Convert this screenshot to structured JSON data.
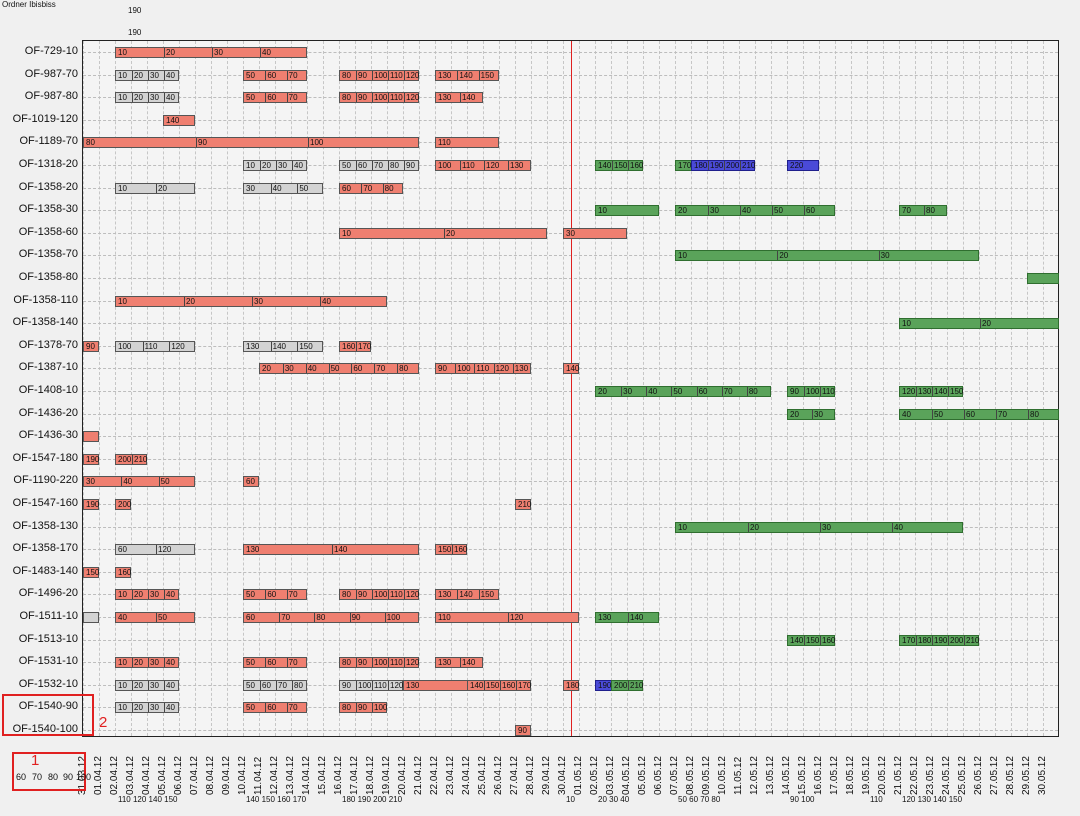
{
  "header": {
    "top_left": "Ordner Ibisbiss",
    "top_marks": [
      "190",
      "190"
    ]
  },
  "rows": [
    {
      "label": "OF-729-10"
    },
    {
      "label": "OF-987-70"
    },
    {
      "label": "OF-987-80"
    },
    {
      "label": "OF-1019-120"
    },
    {
      "label": "OF-1189-70"
    },
    {
      "label": "OF-1318-20"
    },
    {
      "label": "OF-1358-20"
    },
    {
      "label": "OF-1358-30"
    },
    {
      "label": "OF-1358-60"
    },
    {
      "label": "OF-1358-70"
    },
    {
      "label": "OF-1358-80"
    },
    {
      "label": "OF-1358-110"
    },
    {
      "label": "OF-1358-140"
    },
    {
      "label": "OF-1378-70"
    },
    {
      "label": "OF-1387-10"
    },
    {
      "label": "OF-1408-10"
    },
    {
      "label": "OF-1436-20"
    },
    {
      "label": "OF-1436-30"
    },
    {
      "label": "OF-1547-180"
    },
    {
      "label": "OF-1190-220"
    },
    {
      "label": "OF-1547-160"
    },
    {
      "label": "OF-1358-130"
    },
    {
      "label": "OF-1358-170"
    },
    {
      "label": "OF-1483-140"
    },
    {
      "label": "OF-1496-20"
    },
    {
      "label": "OF-1511-10"
    },
    {
      "label": "OF-1513-10"
    },
    {
      "label": "OF-1531-10"
    },
    {
      "label": "OF-1532-10"
    },
    {
      "label": "OF-1540-90"
    },
    {
      "label": "OF-1540-100"
    }
  ],
  "dates": [
    "31.03.12",
    "01.04.12",
    "02.04.12",
    "03.04.12",
    "04.04.12",
    "05.04.12",
    "06.04.12",
    "07.04.12",
    "08.04.12",
    "09.04.12",
    "10.04.12",
    "11.04.12",
    "12.04.12",
    "13.04.12",
    "14.04.12",
    "15.04.12",
    "16.04.12",
    "17.04.12",
    "18.04.12",
    "19.04.12",
    "20.04.12",
    "21.04.12",
    "22.04.12",
    "23.04.12",
    "24.04.12",
    "25.04.12",
    "26.04.12",
    "27.04.12",
    "28.04.12",
    "29.04.12",
    "30.04.12",
    "01.05.12",
    "02.05.12",
    "03.05.12",
    "04.05.12",
    "05.05.12",
    "06.05.12",
    "07.05.12",
    "08.05.12",
    "09.05.12",
    "10.05.12",
    "11.05.12",
    "12.05.12",
    "13.05.12",
    "14.05.12",
    "15.05.12",
    "16.05.12",
    "17.05.12",
    "18.05.12",
    "19.05.12",
    "20.05.12",
    "21.05.12",
    "22.05.12",
    "23.05.12",
    "24.05.12",
    "25.05.12",
    "26.05.12",
    "27.05.12",
    "28.05.12",
    "29.05.12",
    "30.05.12"
  ],
  "bars": [
    {
      "row": 0,
      "from": "02.04.12",
      "to": "13.04.12",
      "color": "red",
      "labels": [
        "10",
        "20",
        "30",
        "40"
      ]
    },
    {
      "row": 1,
      "from": "02.04.12",
      "to": "05.04.12",
      "color": "gray",
      "labels": [
        "10",
        "20",
        "30",
        "40"
      ]
    },
    {
      "row": 1,
      "from": "10.04.12",
      "to": "13.04.12",
      "color": "red",
      "labels": [
        "50",
        "60",
        "70"
      ]
    },
    {
      "row": 1,
      "from": "16.04.12",
      "to": "20.04.12",
      "color": "red",
      "labels": [
        "80",
        "90",
        "100",
        "110",
        "120"
      ]
    },
    {
      "row": 1,
      "from": "22.04.12",
      "to": "25.04.12",
      "color": "red",
      "labels": [
        "130",
        "140",
        "150"
      ]
    },
    {
      "row": 2,
      "from": "02.04.12",
      "to": "05.04.12",
      "color": "gray",
      "labels": [
        "10",
        "20",
        "30",
        "40"
      ]
    },
    {
      "row": 2,
      "from": "10.04.12",
      "to": "13.04.12",
      "color": "red",
      "labels": [
        "50",
        "60",
        "70"
      ]
    },
    {
      "row": 2,
      "from": "16.04.12",
      "to": "20.04.12",
      "color": "red",
      "labels": [
        "80",
        "90",
        "100",
        "110",
        "120"
      ]
    },
    {
      "row": 2,
      "from": "22.04.12",
      "to": "24.04.12",
      "color": "red",
      "labels": [
        "130",
        "140"
      ]
    },
    {
      "row": 3,
      "from": "05.04.12",
      "to": "06.04.12",
      "color": "red",
      "labels": [
        "140"
      ]
    },
    {
      "row": 4,
      "from": "31.03.12",
      "to": "20.04.12",
      "color": "red",
      "labels": [
        "80",
        "90",
        "100"
      ]
    },
    {
      "row": 4,
      "from": "22.04.12",
      "to": "25.04.12",
      "color": "red",
      "labels": [
        "110"
      ]
    },
    {
      "row": 5,
      "from": "10.04.12",
      "to": "13.04.12",
      "color": "gray",
      "labels": [
        "10",
        "20",
        "30",
        "40"
      ]
    },
    {
      "row": 5,
      "from": "16.04.12",
      "to": "20.04.12",
      "color": "gray",
      "labels": [
        "50",
        "60",
        "70",
        "80",
        "90"
      ]
    },
    {
      "row": 5,
      "from": "22.04.12",
      "to": "27.04.12",
      "color": "red",
      "labels": [
        "100",
        "110",
        "120",
        "130"
      ]
    },
    {
      "row": 5,
      "from": "02.05.12",
      "to": "04.05.12",
      "color": "green",
      "labels": [
        "140",
        "150",
        "160"
      ]
    },
    {
      "row": 5,
      "from": "07.05.12",
      "to": "10.05.12",
      "color": "green",
      "labels": [
        "170"
      ]
    },
    {
      "row": 5,
      "from": "08.05.12",
      "to": "11.05.12",
      "color": "blue",
      "labels": [
        "180",
        "190",
        "200",
        "210"
      ]
    },
    {
      "row": 5,
      "from": "14.05.12",
      "to": "15.05.12",
      "color": "blue",
      "labels": [
        "220"
      ]
    },
    {
      "row": 6,
      "from": "02.04.12",
      "to": "06.04.12",
      "color": "gray",
      "labels": [
        "10",
        "20"
      ]
    },
    {
      "row": 6,
      "from": "10.04.12",
      "to": "14.04.12",
      "color": "gray",
      "labels": [
        "30",
        "40",
        "50"
      ]
    },
    {
      "row": 6,
      "from": "16.04.12",
      "to": "19.04.12",
      "color": "red",
      "labels": [
        "60",
        "70",
        "80"
      ]
    },
    {
      "row": 7,
      "from": "02.05.12",
      "to": "05.05.12",
      "color": "green",
      "labels": [
        "10"
      ]
    },
    {
      "row": 7,
      "from": "07.05.12",
      "to": "16.05.12",
      "color": "green",
      "labels": [
        "20",
        "30",
        "40",
        "50",
        "60"
      ]
    },
    {
      "row": 7,
      "from": "21.05.12",
      "to": "23.05.12",
      "color": "green",
      "labels": [
        "70",
        "80"
      ]
    },
    {
      "row": 8,
      "from": "16.04.12",
      "to": "28.04.12",
      "color": "red",
      "labels": [
        "10",
        "20"
      ]
    },
    {
      "row": 8,
      "from": "30.04.12",
      "to": "03.05.12",
      "color": "red",
      "labels": [
        "30"
      ]
    },
    {
      "row": 9,
      "from": "07.05.12",
      "to": "25.05.12",
      "color": "green",
      "labels": [
        "10",
        "20",
        "30"
      ]
    },
    {
      "row": 10,
      "from": "29.05.12",
      "to": "30.05.12",
      "color": "green",
      "labels": []
    },
    {
      "row": 11,
      "from": "02.04.12",
      "to": "18.04.12",
      "color": "red",
      "labels": [
        "10",
        "20",
        "30",
        "40"
      ]
    },
    {
      "row": 12,
      "from": "21.05.12",
      "to": "30.05.12",
      "color": "green",
      "labels": [
        "10",
        "20"
      ]
    },
    {
      "row": 13,
      "from": "31.03.12",
      "to": "31.03.12",
      "color": "red",
      "labels": [
        "90"
      ]
    },
    {
      "row": 13,
      "from": "02.04.12",
      "to": "06.04.12",
      "color": "gray",
      "labels": [
        "100",
        "110",
        "120"
      ]
    },
    {
      "row": 13,
      "from": "10.04.12",
      "to": "14.04.12",
      "color": "gray",
      "labels": [
        "130",
        "140",
        "150"
      ]
    },
    {
      "row": 13,
      "from": "16.04.12",
      "to": "17.04.12",
      "color": "red",
      "labels": [
        "160",
        "170"
      ]
    },
    {
      "row": 14,
      "from": "11.04.12",
      "to": "20.04.12",
      "color": "red",
      "labels": [
        "20",
        "30",
        "40",
        "50",
        "60",
        "70",
        "80"
      ]
    },
    {
      "row": 14,
      "from": "22.04.12",
      "to": "27.04.12",
      "color": "red",
      "labels": [
        "90",
        "100",
        "110",
        "120",
        "130"
      ]
    },
    {
      "row": 14,
      "from": "30.04.12",
      "to": "30.04.12",
      "color": "red",
      "labels": [
        "140"
      ]
    },
    {
      "row": 15,
      "from": "02.05.12",
      "to": "12.05.12",
      "color": "green",
      "labels": [
        "20",
        "30",
        "40",
        "50",
        "60",
        "70",
        "80"
      ]
    },
    {
      "row": 15,
      "from": "14.05.12",
      "to": "16.05.12",
      "color": "green",
      "labels": [
        "90",
        "100",
        "110"
      ]
    },
    {
      "row": 15,
      "from": "21.05.12",
      "to": "24.05.12",
      "color": "green",
      "labels": [
        "120",
        "130",
        "140",
        "150"
      ]
    },
    {
      "row": 16,
      "from": "14.05.12",
      "to": "16.05.12",
      "color": "green",
      "labels": [
        "20",
        "30"
      ]
    },
    {
      "row": 16,
      "from": "21.05.12",
      "to": "30.05.12",
      "color": "green",
      "labels": [
        "40",
        "50",
        "60",
        "70",
        "80"
      ]
    },
    {
      "row": 17,
      "from": "31.03.12",
      "to": "31.03.12",
      "color": "red",
      "labels": []
    },
    {
      "row": 18,
      "from": "31.03.12",
      "to": "31.03.12",
      "color": "red",
      "labels": [
        "190"
      ]
    },
    {
      "row": 18,
      "from": "02.04.12",
      "to": "03.04.12",
      "color": "red",
      "labels": [
        "200",
        "210"
      ]
    },
    {
      "row": 19,
      "from": "31.03.12",
      "to": "06.04.12",
      "color": "red",
      "labels": [
        "30",
        "40",
        "50"
      ]
    },
    {
      "row": 19,
      "from": "10.04.12",
      "to": "10.04.12",
      "color": "red",
      "labels": [
        "60"
      ]
    },
    {
      "row": 20,
      "from": "31.03.12",
      "to": "31.03.12",
      "color": "red",
      "labels": [
        "190"
      ]
    },
    {
      "row": 20,
      "from": "02.04.12",
      "to": "02.04.12",
      "color": "red",
      "labels": [
        "200"
      ]
    },
    {
      "row": 20,
      "from": "27.04.12",
      "to": "27.04.12",
      "color": "red",
      "labels": [
        "210"
      ]
    },
    {
      "row": 21,
      "from": "07.05.12",
      "to": "24.05.12",
      "color": "green",
      "labels": [
        "10",
        "20",
        "30",
        "40"
      ]
    },
    {
      "row": 22,
      "from": "02.04.12",
      "to": "06.04.12",
      "color": "gray",
      "labels": [
        "60",
        "120"
      ]
    },
    {
      "row": 22,
      "from": "10.04.12",
      "to": "20.04.12",
      "color": "red",
      "labels": [
        "130",
        "140"
      ]
    },
    {
      "row": 22,
      "from": "22.04.12",
      "to": "23.04.12",
      "color": "red",
      "labels": [
        "150",
        "160"
      ]
    },
    {
      "row": 23,
      "from": "31.03.12",
      "to": "31.03.12",
      "color": "red",
      "labels": [
        "150"
      ]
    },
    {
      "row": 23,
      "from": "02.04.12",
      "to": "02.04.12",
      "color": "red",
      "labels": [
        "160"
      ]
    },
    {
      "row": 24,
      "from": "02.04.12",
      "to": "05.04.12",
      "color": "red",
      "labels": [
        "10",
        "20",
        "30",
        "40"
      ]
    },
    {
      "row": 24,
      "from": "10.04.12",
      "to": "13.04.12",
      "color": "red",
      "labels": [
        "50",
        "60",
        "70"
      ]
    },
    {
      "row": 24,
      "from": "16.04.12",
      "to": "20.04.12",
      "color": "red",
      "labels": [
        "80",
        "90",
        "100",
        "110",
        "120"
      ]
    },
    {
      "row": 24,
      "from": "22.04.12",
      "to": "25.04.12",
      "color": "red",
      "labels": [
        "130",
        "140",
        "150"
      ]
    },
    {
      "row": 25,
      "from": "31.03.12",
      "to": "31.03.12",
      "color": "gray",
      "labels": []
    },
    {
      "row": 25,
      "from": "02.04.12",
      "to": "06.04.12",
      "color": "red",
      "labels": [
        "40",
        "50"
      ]
    },
    {
      "row": 25,
      "from": "10.04.12",
      "to": "20.04.12",
      "color": "red",
      "labels": [
        "60",
        "70",
        "80",
        "90",
        "100"
      ]
    },
    {
      "row": 25,
      "from": "22.04.12",
      "to": "30.04.12",
      "color": "red",
      "labels": [
        "110",
        "120"
      ]
    },
    {
      "row": 25,
      "from": "02.05.12",
      "to": "05.05.12",
      "color": "green",
      "labels": [
        "130",
        "140"
      ]
    },
    {
      "row": 26,
      "from": "14.05.12",
      "to": "16.05.12",
      "color": "green",
      "labels": [
        "140",
        "150",
        "160"
      ]
    },
    {
      "row": 26,
      "from": "21.05.12",
      "to": "25.05.12",
      "color": "green",
      "labels": [
        "170",
        "180",
        "190",
        "200",
        "210"
      ]
    },
    {
      "row": 27,
      "from": "02.04.12",
      "to": "05.04.12",
      "color": "red",
      "labels": [
        "10",
        "20",
        "30",
        "40"
      ]
    },
    {
      "row": 27,
      "from": "10.04.12",
      "to": "13.04.12",
      "color": "red",
      "labels": [
        "50",
        "60",
        "70"
      ]
    },
    {
      "row": 27,
      "from": "16.04.12",
      "to": "20.04.12",
      "color": "red",
      "labels": [
        "80",
        "90",
        "100",
        "110",
        "120"
      ]
    },
    {
      "row": 27,
      "from": "22.04.12",
      "to": "24.04.12",
      "color": "red",
      "labels": [
        "130",
        "140"
      ]
    },
    {
      "row": 28,
      "from": "02.04.12",
      "to": "05.04.12",
      "color": "gray",
      "labels": [
        "10",
        "20",
        "30",
        "40"
      ]
    },
    {
      "row": 28,
      "from": "10.04.12",
      "to": "13.04.12",
      "color": "gray",
      "labels": [
        "50",
        "60",
        "70",
        "80"
      ]
    },
    {
      "row": 28,
      "from": "16.04.12",
      "to": "19.04.12",
      "color": "gray",
      "labels": [
        "90",
        "100",
        "110",
        "120"
      ]
    },
    {
      "row": 28,
      "from": "20.04.12",
      "to": "24.04.12",
      "color": "red",
      "labels": [
        "130"
      ]
    },
    {
      "row": 28,
      "from": "24.04.12",
      "to": "27.04.12",
      "color": "red",
      "labels": [
        "140",
        "150",
        "160",
        "170"
      ]
    },
    {
      "row": 28,
      "from": "30.04.12",
      "to": "30.04.12",
      "color": "red",
      "labels": [
        "180"
      ]
    },
    {
      "row": 28,
      "from": "02.05.12",
      "to": "03.05.12",
      "color": "blue",
      "labels": [
        "190"
      ]
    },
    {
      "row": 28,
      "from": "03.05.12",
      "to": "04.05.12",
      "color": "green",
      "labels": [
        "200",
        "210"
      ]
    },
    {
      "row": 29,
      "from": "02.04.12",
      "to": "05.04.12",
      "color": "gray",
      "labels": [
        "10",
        "20",
        "30",
        "40"
      ]
    },
    {
      "row": 29,
      "from": "10.04.12",
      "to": "13.04.12",
      "color": "red",
      "labels": [
        "50",
        "60",
        "70"
      ]
    },
    {
      "row": 29,
      "from": "16.04.12",
      "to": "18.04.12",
      "color": "red",
      "labels": [
        "80",
        "90",
        "100"
      ]
    },
    {
      "row": 30,
      "from": "27.04.12",
      "to": "27.04.12",
      "color": "red",
      "labels": [
        "90"
      ]
    }
  ],
  "today": "30.04.12",
  "sub_labels": [
    {
      "date": "02.04.12",
      "text": "110 120 140 150"
    },
    {
      "date": "10.04.12",
      "text": "140 150 160 170"
    },
    {
      "date": "16.04.12",
      "text": "180 190 200 210"
    },
    {
      "date": "30.04.12",
      "text": "10"
    },
    {
      "date": "02.05.12",
      "text": "20 30 40"
    },
    {
      "date": "07.05.12",
      "text": "50 60 70 80"
    },
    {
      "date": "14.05.12",
      "text": "90 100"
    },
    {
      "date": "19.05.12",
      "text": "110"
    },
    {
      "date": "21.05.12",
      "text": "120 130 140 150"
    }
  ],
  "annotations": {
    "box1_number": "1",
    "box2_number": "2",
    "legend_values": [
      "60",
      "70",
      "80",
      "90",
      "100"
    ]
  },
  "colors": {
    "red": "#ef7f70",
    "gray": "#d3d3d3",
    "green": "#5aa35a",
    "blue": "#4a4ad8",
    "today": "#e02020"
  }
}
